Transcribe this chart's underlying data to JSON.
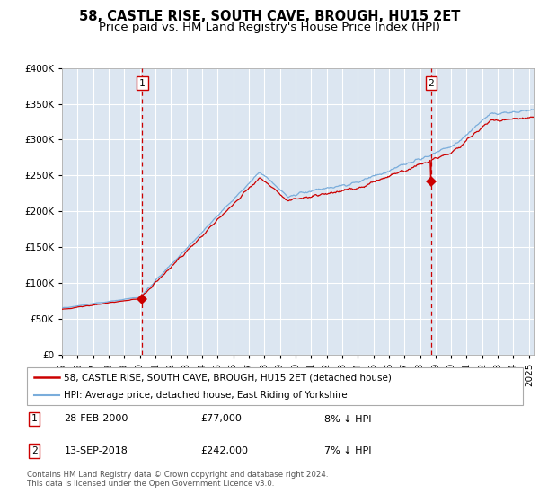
{
  "title": "58, CASTLE RISE, SOUTH CAVE, BROUGH, HU15 2ET",
  "subtitle": "Price paid vs. HM Land Registry's House Price Index (HPI)",
  "ylim": [
    0,
    400000
  ],
  "xlim_start": 1995.0,
  "xlim_end": 2025.3,
  "sale1_x": 2000.16,
  "sale1_y": 77000,
  "sale1_label": "1",
  "sale1_date": "28-FEB-2000",
  "sale1_price": "£77,000",
  "sale1_hpi": "8% ↓ HPI",
  "sale2_x": 2018.71,
  "sale2_y": 242000,
  "sale2_label": "2",
  "sale2_date": "13-SEP-2018",
  "sale2_price": "£242,000",
  "sale2_hpi": "7% ↓ HPI",
  "legend_line1": "58, CASTLE RISE, SOUTH CAVE, BROUGH, HU15 2ET (detached house)",
  "legend_line2": "HPI: Average price, detached house, East Riding of Yorkshire",
  "footer": "Contains HM Land Registry data © Crown copyright and database right 2024.\nThis data is licensed under the Open Government Licence v3.0.",
  "red_color": "#cc0000",
  "blue_color": "#7aaddb",
  "bg_color": "#dce6f1",
  "grid_color": "#ffffff",
  "title_fontsize": 10.5,
  "subtitle_fontsize": 9.5
}
